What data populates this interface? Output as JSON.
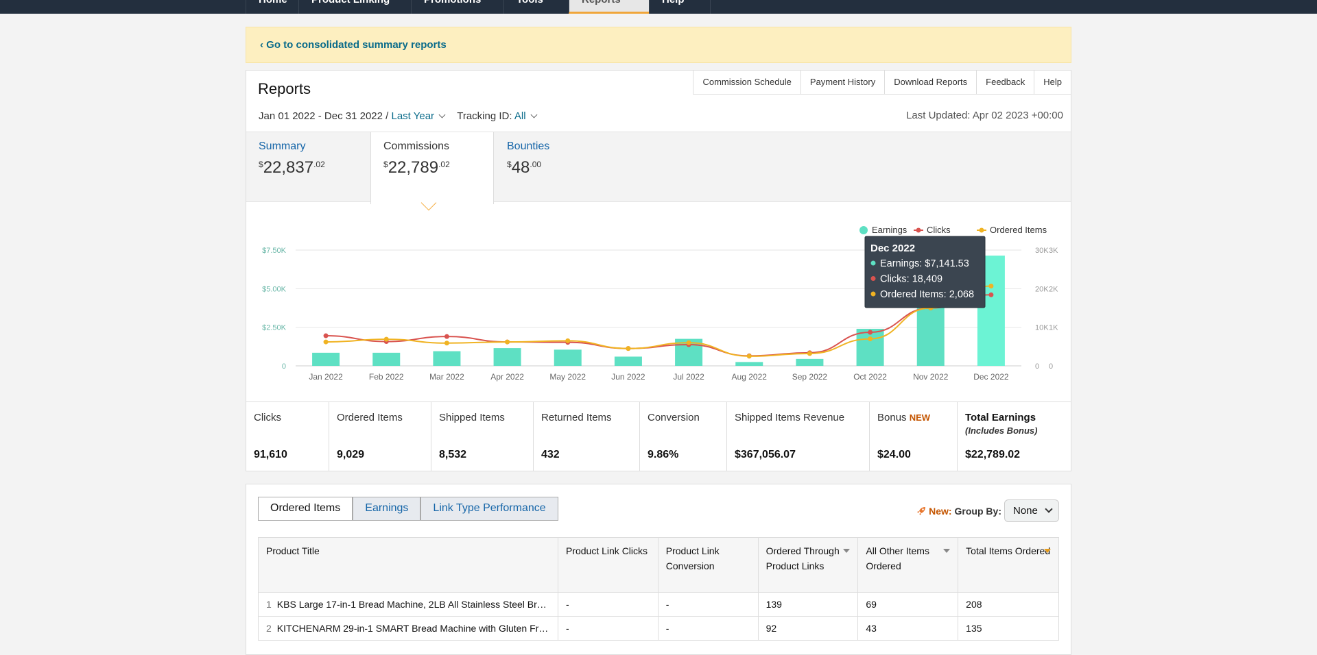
{
  "topnav": {
    "tabs": [
      "Home",
      "Product Linking",
      "Promotions",
      "Tools",
      "Reports",
      "Help"
    ],
    "active_index": 4
  },
  "banner": {
    "link": "‹ Go to consolidated summary reports"
  },
  "reports": {
    "title": "Reports",
    "links": [
      "Commission Schedule",
      "Payment History",
      "Download Reports",
      "Feedback",
      "Help"
    ],
    "date_range": "Jan 01 2022 - Dec 31 2022 /",
    "period": "Last Year",
    "tracking_label": "Tracking ID:",
    "tracking_value": "All",
    "last_updated": "Last Updated: Apr 02 2023 +00:00"
  },
  "summary_tabs": [
    {
      "label": "Summary",
      "dollars": "22,837",
      "cents": ".02",
      "currency": "$"
    },
    {
      "label": "Commissions",
      "dollars": "22,789",
      "cents": ".02",
      "currency": "$"
    },
    {
      "label": "Bounties",
      "dollars": "48",
      "cents": ".00",
      "currency": "$"
    }
  ],
  "chart_data": {
    "type": "bar+line",
    "categories": [
      "Jan 2022",
      "Feb 2022",
      "Mar 2022",
      "Apr 2022",
      "May 2022",
      "Jun 2022",
      "Jul 2022",
      "Aug 2022",
      "Sep 2022",
      "Oct 2022",
      "Nov 2022",
      "Dec 2022"
    ],
    "series": [
      {
        "name": "Earnings",
        "type": "bar",
        "axis": "left",
        "color": "#5ee0c3",
        "values": [
          850,
          850,
          950,
          1150,
          1050,
          600,
          1750,
          250,
          450,
          2400,
          4200,
          7141.53
        ]
      },
      {
        "name": "Clicks",
        "type": "line",
        "axis": "right1",
        "color": "#d9534f",
        "values": [
          7800,
          6300,
          7600,
          6200,
          6100,
          4500,
          5500,
          2600,
          3400,
          8700,
          15000,
          18409
        ]
      },
      {
        "name": "Ordered Items",
        "type": "line",
        "axis": "right2",
        "color": "#f0b323",
        "values": [
          620,
          690,
          590,
          620,
          650,
          450,
          600,
          250,
          320,
          700,
          1500,
          2068
        ]
      }
    ],
    "left_axis": {
      "ticks": [
        "0",
        "$2.50K",
        "$5.00K",
        "$7.50K"
      ],
      "max": 7500
    },
    "right1_axis": {
      "ticks": [
        "0",
        "10K",
        "20K",
        "30K"
      ],
      "max": 30000
    },
    "right2_axis": {
      "ticks": [
        "0",
        "1K",
        "2K",
        "3K"
      ],
      "max": 3000
    },
    "legend_position": "top-right",
    "tooltip": {
      "title": "Dec 2022",
      "lines": [
        "Earnings: $7,141.53",
        "Clicks: 18,409",
        "Ordered Items: 2,068"
      ]
    }
  },
  "metrics": [
    {
      "label": "Clicks",
      "value": "91,610"
    },
    {
      "label": "Ordered Items",
      "value": "9,029"
    },
    {
      "label": "Shipped Items",
      "value": "8,532"
    },
    {
      "label": "Returned Items",
      "value": "432"
    },
    {
      "label": "Conversion",
      "value": "9.86%"
    },
    {
      "label": "Shipped Items Revenue",
      "value": "$367,056.07"
    },
    {
      "label": "Bonus",
      "badge": "NEW",
      "value": "$24.00"
    },
    {
      "label": "Total Earnings",
      "sub": "(Includes Bonus)",
      "value": "$22,789.02"
    }
  ],
  "detail_tabs": [
    "Ordered Items",
    "Earnings",
    "Link Type Performance"
  ],
  "groupby": {
    "new": "New:",
    "label": "Group By:",
    "value": "None"
  },
  "table": {
    "headers": [
      "Product Title",
      "Product Link Clicks",
      "Product Link Conversion",
      "Ordered Through Product Links",
      "All Other Items Ordered",
      "Total Items Ordered"
    ],
    "rows": [
      [
        "1",
        "KBS Large 17-in-1 Bread Machine, 2LB All Stainless Steel Br…",
        "-",
        "-",
        "139",
        "69",
        "208"
      ],
      [
        "2",
        "KITCHENARM 29-in-1 SMART Bread Machine with Gluten Fr…",
        "-",
        "-",
        "92",
        "43",
        "135"
      ]
    ]
  }
}
